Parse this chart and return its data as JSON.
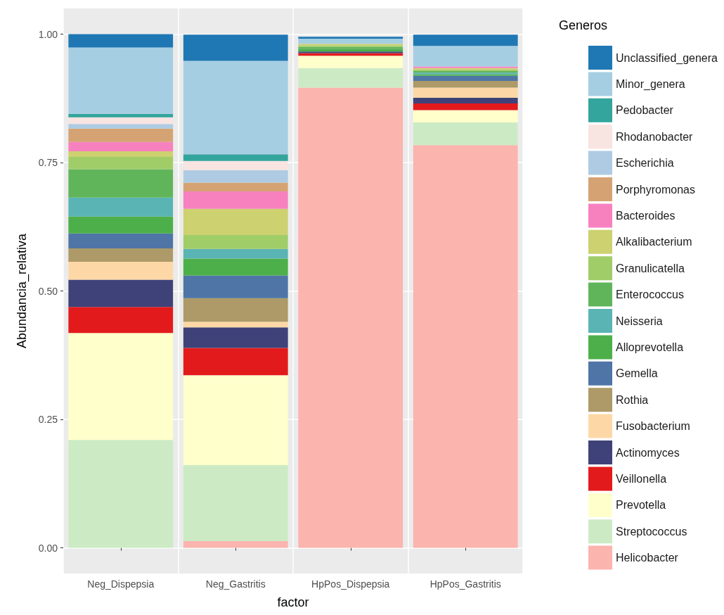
{
  "chart_data": {
    "type": "bar",
    "stacked": true,
    "xlabel": "factor",
    "ylabel": "Abundancia_relativa",
    "legend_title": "Generos",
    "legend": "right",
    "grid": true,
    "categories": [
      "Neg_Dispepsia",
      "Neg_Gastritis",
      "HpPos_Dispepsia",
      "HpPos_Gastritis"
    ],
    "ylim": [
      -0.05,
      1.05
    ],
    "yticks": [
      {
        "value": 0,
        "label": "0.00"
      },
      {
        "value": 0.25,
        "label": "0.25"
      },
      {
        "value": 0.5,
        "label": "0.50"
      },
      {
        "value": 0.75,
        "label": "0.75"
      },
      {
        "value": 1,
        "label": "1.00"
      }
    ],
    "series": [
      {
        "name": "Helicobacter",
        "color": "#fbb4ae",
        "values": [
          0,
          0.013,
          0.896,
          0.784
        ]
      },
      {
        "name": "Streptococcus",
        "color": "#ccebc5",
        "values": [
          0.21,
          0.148,
          0.038,
          0.044
        ]
      },
      {
        "name": "Prevotella",
        "color": "#ffffcc",
        "values": [
          0.208,
          0.175,
          0.024,
          0.024
        ]
      },
      {
        "name": "Veillonella",
        "color": "#e31a1c",
        "values": [
          0.051,
          0.053,
          0.005,
          0.013
        ]
      },
      {
        "name": "Actinomyces",
        "color": "#3f4278",
        "values": [
          0.053,
          0.04,
          0.003,
          0.011
        ]
      },
      {
        "name": "Fusobacterium",
        "color": "#fdd8a6",
        "values": [
          0.035,
          0.011,
          null,
          0.02
        ]
      },
      {
        "name": "Rothia",
        "color": "#ad9a68",
        "values": [
          0.026,
          0.046,
          0,
          0.013
        ]
      },
      {
        "name": "Gemella",
        "color": "#4e75a6",
        "values": [
          0.029,
          0.044,
          0,
          0.01
        ]
      },
      {
        "name": "Alloprevotella",
        "color": "#4daf4a",
        "values": [
          0.033,
          0.033,
          0.005,
          0.003
        ]
      },
      {
        "name": "Neisseria",
        "color": "#5ab4b4",
        "values": [
          0.037,
          0.019,
          0,
          0.003
        ]
      },
      {
        "name": "Enterococcus",
        "color": "#60b55a",
        "values": [
          0.055,
          0,
          0.004,
          0.003
        ]
      },
      {
        "name": "Granulicatella",
        "color": "#a1cd69",
        "values": [
          0.024,
          0.027,
          0.003,
          0.003
        ]
      },
      {
        "name": "Alkalibacterium",
        "color": "#cdd16f",
        "values": [
          0.011,
          0.051,
          0.003,
          0.003
        ]
      },
      {
        "name": "Bacteroides",
        "color": "#f781bf",
        "values": [
          0.018,
          0.034,
          0,
          0.003
        ]
      },
      {
        "name": "Porphyromonas",
        "color": "#d5a373",
        "values": [
          0.026,
          0.017,
          0,
          0
        ]
      },
      {
        "name": "Escherichia",
        "color": "#aecbe3",
        "values": [
          0.009,
          0.024,
          null,
          0
        ]
      },
      {
        "name": "Rhodanobacter",
        "color": "#f8e4e1",
        "values": [
          0.013,
          0.018,
          0,
          null
        ]
      },
      {
        "name": "Pedobacter",
        "color": "#33a59c",
        "values": [
          0.007,
          0.013,
          null,
          0
        ]
      },
      {
        "name": "Minor_genera",
        "color": "#a6cee3",
        "values": [
          0.129,
          0.182,
          0.01,
          0.04
        ]
      },
      {
        "name": "Unclassified_genera",
        "color": "#1f78b4",
        "values": [
          0.026,
          0.051,
          0.004,
          0.022
        ]
      }
    ]
  }
}
